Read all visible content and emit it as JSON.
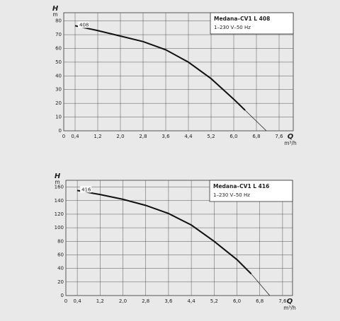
{
  "chart_data": [
    {
      "type": "line",
      "x_label": "Q",
      "x_unit": "m³/h",
      "y_label": "H",
      "y_unit": "m",
      "box_title": "Medana–CV1 L 408",
      "box_subtitle": "1–230 V–50 Hz",
      "xlim": [
        0,
        8.1
      ],
      "ylim": [
        0,
        86
      ],
      "xticks": [
        0,
        {
          "value": 0.4,
          "label": "0,4"
        },
        {
          "value": 1.2,
          "label": "1,2"
        },
        {
          "value": 2.0,
          "label": "2,0"
        },
        {
          "value": 2.8,
          "label": "2,8"
        },
        {
          "value": 3.6,
          "label": "3,6"
        },
        {
          "value": 4.4,
          "label": "4,4"
        },
        {
          "value": 5.2,
          "label": "5,2"
        },
        {
          "value": 6.0,
          "label": "6,0"
        },
        {
          "value": 6.8,
          "label": "6,8"
        },
        {
          "value": 7.6,
          "label": "7,6"
        }
      ],
      "yticks": [
        0,
        10,
        20,
        30,
        40,
        50,
        60,
        70,
        80
      ],
      "grid": true,
      "series": [
        {
          "name": "408",
          "color": "#111111",
          "width": 2,
          "x": [
            0.4,
            1.2,
            2.0,
            2.8,
            3.6,
            4.4,
            5.2,
            6.0,
            6.4
          ],
          "values": [
            76.5,
            73,
            69,
            65,
            59,
            50,
            38,
            23,
            15
          ]
        },
        {
          "color": "#111111",
          "width": 0.7,
          "x": [
            6.4,
            7.15
          ],
          "values": [
            15,
            0
          ]
        }
      ]
    },
    {
      "type": "line",
      "x_label": "Q",
      "x_unit": "m³/h",
      "y_label": "H",
      "y_unit": "m",
      "box_title": "Medana–CV1 L 416",
      "box_subtitle": "1–230 V–50 Hz",
      "xlim": [
        0,
        7.95
      ],
      "ylim": [
        0,
        170
      ],
      "xticks": [
        0,
        {
          "value": 0.4,
          "label": "0,4"
        },
        {
          "value": 1.2,
          "label": "1,2"
        },
        {
          "value": 2.0,
          "label": "2,0"
        },
        {
          "value": 2.8,
          "label": "2,8"
        },
        {
          "value": 3.6,
          "label": "3,6"
        },
        {
          "value": 4.4,
          "label": "4,4"
        },
        {
          "value": 5.2,
          "label": "5,2"
        },
        {
          "value": 6.0,
          "label": "6,0"
        },
        {
          "value": 6.8,
          "label": "6,8"
        },
        {
          "value": 7.6,
          "label": "7,6"
        }
      ],
      "yticks": [
        0,
        20,
        40,
        60,
        80,
        100,
        120,
        140,
        160
      ],
      "grid": true,
      "series": [
        {
          "name": "416",
          "color": "#111111",
          "width": 2,
          "x": [
            0.4,
            1.2,
            2.0,
            2.8,
            3.6,
            4.4,
            5.2,
            6.0,
            6.5
          ],
          "values": [
            155,
            149,
            142,
            133,
            121,
            104,
            80,
            53,
            32
          ]
        },
        {
          "color": "#111111",
          "width": 0.7,
          "x": [
            6.5,
            7.15
          ],
          "values": [
            32,
            0
          ]
        }
      ]
    }
  ]
}
